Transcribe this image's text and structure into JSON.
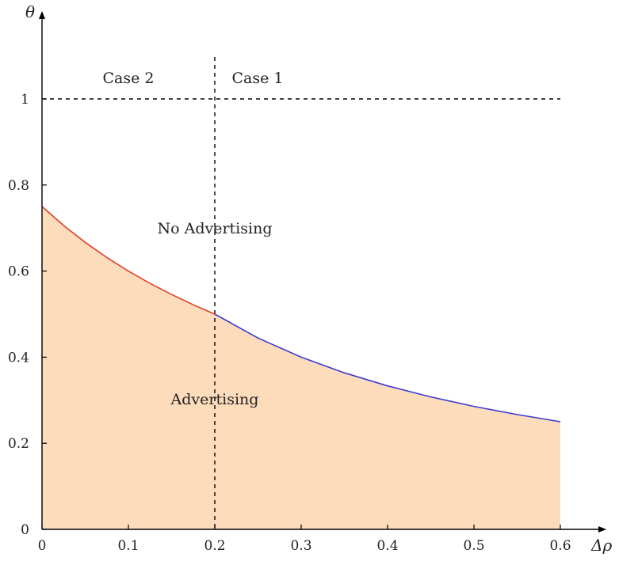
{
  "chart_data": {
    "type": "area",
    "xlabel": "Δρ",
    "ylabel": "θ",
    "xlim": [
      0,
      0.6
    ],
    "ylim": [
      0,
      1.0
    ],
    "x_ticks": [
      "0",
      "0.1",
      "0.2",
      "0.3",
      "0.4",
      "0.5",
      "0.6"
    ],
    "y_ticks": [
      "0",
      "0.2",
      "0.4",
      "0.6",
      "0.8",
      "1"
    ],
    "grid": false,
    "series": [
      {
        "color": "#e0402a",
        "x": [
          0,
          0.025,
          0.05,
          0.075,
          0.1,
          0.125,
          0.15,
          0.175,
          0.2
        ],
        "y": [
          0.75,
          0.7059,
          0.6667,
          0.6316,
          0.6,
          0.5714,
          0.5455,
          0.5217,
          0.5
        ]
      },
      {
        "color": "#3b3bd6",
        "x": [
          0.2,
          0.25,
          0.3,
          0.35,
          0.4,
          0.45,
          0.5,
          0.55,
          0.6
        ],
        "y": [
          0.5,
          0.4444,
          0.4,
          0.3636,
          0.3333,
          0.3077,
          0.2857,
          0.2667,
          0.25
        ]
      }
    ],
    "fill_color": "#fddcbc",
    "reference_lines": [
      {
        "orientation": "horizontal",
        "value": 1.0,
        "style": "dashed"
      },
      {
        "orientation": "vertical",
        "value": 0.2,
        "style": "dashed"
      }
    ],
    "annotations": [
      {
        "text": "Case 2",
        "x": 0.1,
        "y": 1.05
      },
      {
        "text": "Case 1",
        "x": 0.25,
        "y": 1.05
      },
      {
        "text": "No Advertising",
        "x": 0.2,
        "y": 0.7
      },
      {
        "text": "Advertising",
        "x": 0.2,
        "y": 0.3
      }
    ]
  }
}
